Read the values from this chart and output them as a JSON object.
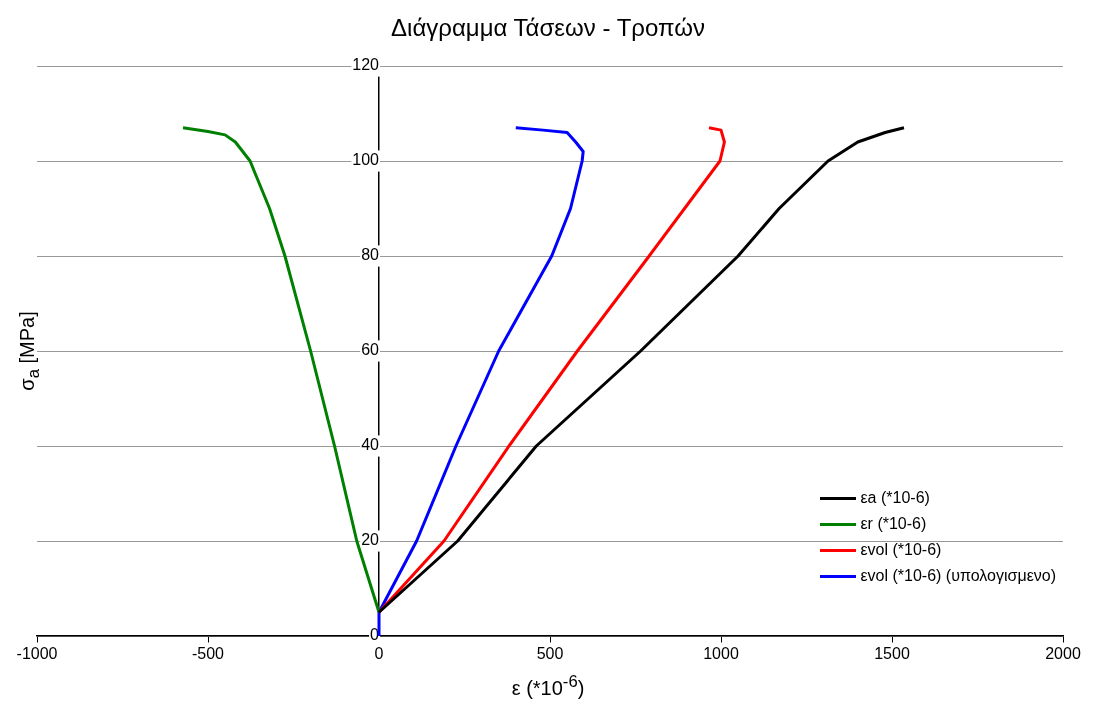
{
  "chart_data": {
    "type": "line",
    "title": "Διάγραμμα Τάσεων - Τροπών",
    "xlabel": "ε (*10$^{-6}$)",
    "ylabel": "σ$_{a}$ [MPa]",
    "xlim": [
      -1000,
      2000
    ],
    "xticks": [
      -1000,
      -500,
      0,
      500,
      1000,
      1500,
      2000
    ],
    "ylim": [
      0,
      120
    ],
    "yticks": [
      0,
      20,
      40,
      60,
      80,
      100,
      120
    ],
    "grid": "y",
    "legend": "bottom right",
    "marker": "none",
    "line_style": "solid",
    "series": [
      {
        "name": "εa (*10-6)",
        "color": "#000000",
        "x": [
          0,
          230,
          460,
          765,
          1050,
          1170,
          1313,
          1400,
          1480,
          1535
        ],
        "values": [
          5,
          20,
          40,
          60,
          80,
          90,
          100,
          104,
          106,
          107
        ]
      },
      {
        "name": "εr  (*10-6)",
        "color": "#008000",
        "x": [
          0,
          -65,
          -130,
          -200,
          -275,
          -320,
          -377,
          -420,
          -450,
          -500,
          -573
        ],
        "values": [
          5,
          20,
          40,
          60,
          80,
          90,
          100,
          104,
          105.5,
          106.2,
          107
        ]
      },
      {
        "name": "εvol (*10-6)",
        "color": "#ff0000",
        "x": [
          0,
          190,
          380,
          580,
          790,
          997,
          1010,
          1000,
          965
        ],
        "values": [
          5,
          20,
          40,
          60,
          80,
          100,
          104,
          106.5,
          107
        ]
      },
      {
        "name": "εvol  (*10-6) (υπολογισμενο)",
        "color": "#0000ff",
        "x": [
          0,
          0,
          110,
          225,
          350,
          505,
          560,
          594,
          597,
          575,
          550,
          480,
          400
        ],
        "values": [
          0,
          5,
          20,
          40,
          60,
          80,
          90,
          100,
          102,
          104,
          106,
          106.5,
          107
        ]
      }
    ]
  }
}
